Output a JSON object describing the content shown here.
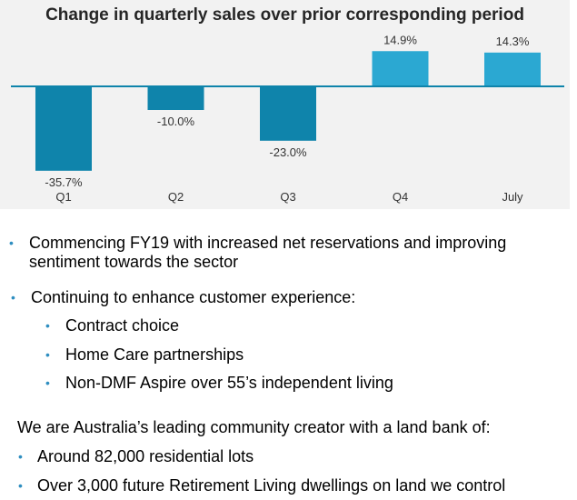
{
  "chart_data": {
    "type": "bar",
    "title": "Change in quarterly sales over prior corresponding period",
    "categories": [
      "Q1",
      "Q2",
      "Q3",
      "Q4",
      "July"
    ],
    "values": [
      -35.7,
      -10.0,
      -23.0,
      14.9,
      14.3
    ],
    "value_labels": [
      "-35.7%",
      "-10.0%",
      "-23.0%",
      "14.9%",
      "14.3%"
    ],
    "bar_colors": [
      "#0f84ab",
      "#0f84ab",
      "#0f84ab",
      "#2ba8d2",
      "#2ba8d2"
    ],
    "xlabel": "",
    "ylabel": "",
    "ylim": [
      -36,
      15
    ],
    "grid": false,
    "legend": "none"
  },
  "bullets_top": [
    {
      "lines": [
        "Commencing FY19 with increased net reservations and improving",
        "sentiment towards the sector"
      ]
    },
    {
      "lines": [
        "Continuing to enhance customer experience:"
      ]
    }
  ],
  "sub_bullets": [
    "Contract choice",
    "Home Care partnerships",
    "Non-DMF Aspire over 55’s independent living"
  ],
  "intro_line": "We are Australia’s leading community creator with a land bank of:",
  "bullets_bottom": [
    "Around 82,000 residential lots",
    "Over 3,000 future Retirement Living dwellings on land we control"
  ],
  "colors": {
    "bullet": "#2e8ec0",
    "panel_bg": "#f2f2f2",
    "axis": "#0f84ab"
  },
  "icons": {
    "bullet": "•"
  }
}
